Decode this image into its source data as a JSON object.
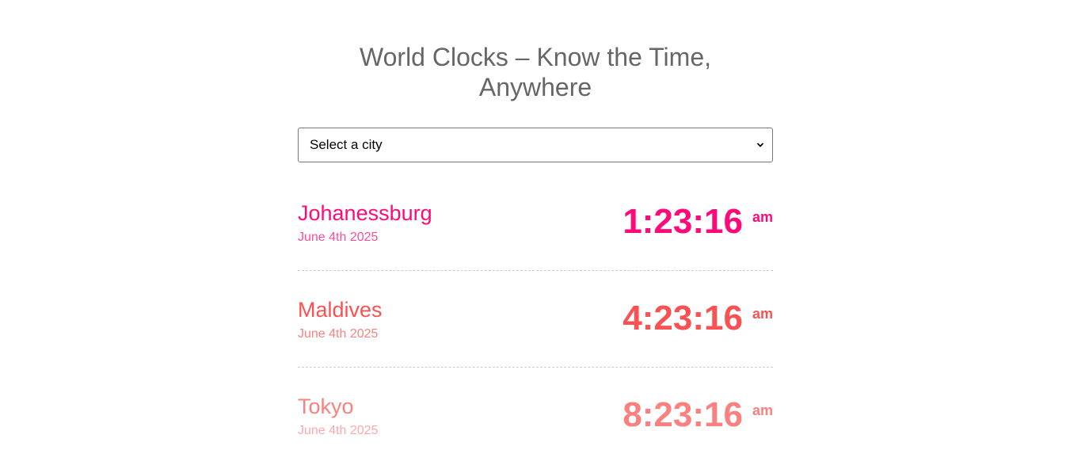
{
  "page": {
    "title_line1": "World Clocks – Know the Time,",
    "title_line2": "Anywhere"
  },
  "city_select": {
    "selected": "Select a city"
  },
  "clocks": [
    {
      "city": "Johanessburg",
      "date": "June 4th 2025",
      "time": "1:23:16",
      "ampm": "am",
      "color": "#ff0a78"
    },
    {
      "city": "Maldives",
      "date": "June 4th 2025",
      "time": "4:23:16",
      "ampm": "am",
      "color": "#fa5252"
    },
    {
      "city": "Tokyo",
      "date": "June 4th 2025",
      "time": "8:23:16",
      "ampm": "am",
      "color": "#fb8080"
    }
  ],
  "icons": {
    "dropdown": "chevron-down-icon"
  }
}
